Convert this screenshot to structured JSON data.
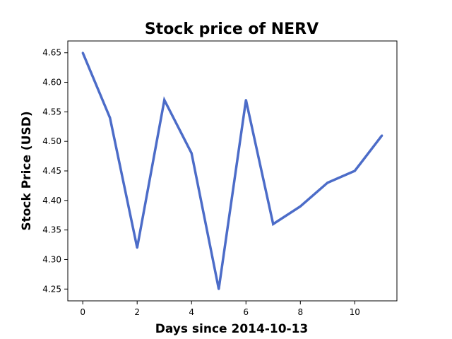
{
  "chart_data": {
    "type": "line",
    "title": "Stock price of NERV",
    "xlabel": "Days since 2014-10-13",
    "ylabel": "Stock Price (USD)",
    "x": [
      0,
      1,
      2,
      3,
      4,
      5,
      6,
      7,
      8,
      9,
      10,
      11
    ],
    "series": [
      {
        "values": [
          4.65,
          4.54,
          4.32,
          4.57,
          4.48,
          4.25,
          4.57,
          4.36,
          4.39,
          4.43,
          4.45,
          4.51
        ]
      }
    ],
    "xlim": [
      -0.55,
      11.55
    ],
    "ylim": [
      4.23,
      4.67
    ],
    "x_ticks": [
      0,
      2,
      4,
      6,
      8,
      10
    ],
    "y_ticks": [
      4.25,
      4.3,
      4.35,
      4.4,
      4.45,
      4.5,
      4.55,
      4.6,
      4.65
    ],
    "grid": false,
    "line_color": "#4c6cc8"
  }
}
